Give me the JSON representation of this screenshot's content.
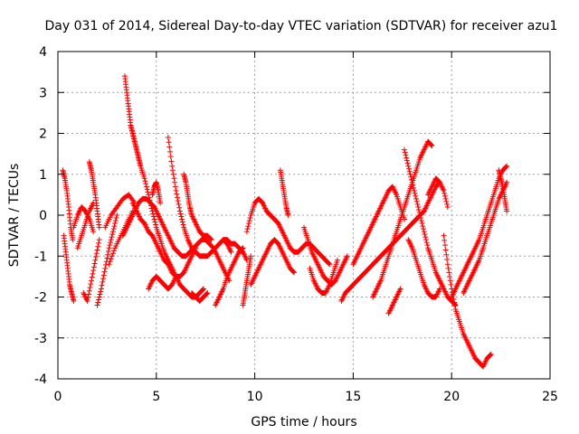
{
  "chart_data": {
    "type": "scatter",
    "title": "Day 031 of 2014, Sidereal Day-to-day VTEC variation (SDTVAR) for receiver azu1",
    "xlabel": "GPS time / hours",
    "ylabel": "SDTVAR / TECUs",
    "xlim": [
      0,
      25
    ],
    "ylim": [
      -4,
      4
    ],
    "xticks": [
      0,
      5,
      10,
      15,
      20,
      25
    ],
    "yticks": [
      -4,
      -3,
      -2,
      -1,
      0,
      1,
      2,
      3,
      4
    ],
    "grid": true,
    "marker": "+",
    "series": [
      {
        "name": "SDTVAR",
        "color": "#ff0000",
        "tracks": [
          {
            "x": [
              0.25,
              0.35,
              0.45,
              0.55,
              0.65,
              0.75
            ],
            "y": [
              1.1,
              0.9,
              0.6,
              0.2,
              -0.3,
              -0.6
            ]
          },
          {
            "x": [
              0.3,
              0.4,
              0.5,
              0.6,
              0.7,
              0.8
            ],
            "y": [
              -0.5,
              -0.9,
              -1.3,
              -1.7,
              -1.9,
              -2.1
            ]
          },
          {
            "x": [
              0.8,
              1.0,
              1.2,
              1.4,
              1.6,
              1.8
            ],
            "y": [
              -0.3,
              0.0,
              0.2,
              0.1,
              -0.1,
              -0.4
            ]
          },
          {
            "x": [
              1.0,
              1.2,
              1.4,
              1.6,
              1.8
            ],
            "y": [
              -0.8,
              -0.5,
              -0.2,
              0.1,
              0.3
            ]
          },
          {
            "x": [
              1.3,
              1.5,
              1.7,
              1.9,
              2.1
            ],
            "y": [
              -1.9,
              -2.1,
              -1.6,
              -1.1,
              -0.6
            ]
          },
          {
            "x": [
              1.6,
              1.7,
              1.8,
              1.9,
              2.0,
              2.1
            ],
            "y": [
              1.3,
              1.1,
              0.8,
              0.5,
              0.1,
              -0.3
            ]
          },
          {
            "x": [
              2.0,
              2.2,
              2.4,
              2.6,
              2.8,
              3.0
            ],
            "y": [
              -2.2,
              -1.8,
              -1.3,
              -0.8,
              -0.4,
              0.0
            ]
          },
          {
            "x": [
              2.4,
              2.7,
              3.0,
              3.3,
              3.6,
              3.9
            ],
            "y": [
              -0.3,
              0.0,
              0.2,
              0.4,
              0.5,
              0.3
            ]
          },
          {
            "x": [
              2.6,
              2.9,
              3.2,
              3.5,
              3.8
            ],
            "y": [
              -1.2,
              -0.8,
              -0.5,
              -0.2,
              0.1
            ]
          },
          {
            "x": [
              3.4,
              3.5,
              3.6,
              3.7,
              3.8,
              3.9,
              4.0,
              4.1,
              4.2,
              4.4,
              4.6,
              4.8,
              5.0,
              5.2,
              5.4,
              5.6,
              5.8,
              6.0,
              6.2,
              6.4,
              6.6,
              6.8,
              7.0,
              7.2,
              7.4
            ],
            "y": [
              3.4,
              3.0,
              2.6,
              2.2,
              2.0,
              1.8,
              1.6,
              1.4,
              1.2,
              0.9,
              0.5,
              0.1,
              -0.3,
              -0.6,
              -0.9,
              -1.1,
              -1.3,
              -1.5,
              -1.7,
              -1.8,
              -1.9,
              -2.0,
              -2.0,
              -1.9,
              -1.8
            ]
          },
          {
            "x": [
              3.3,
              3.5,
              3.7,
              3.9,
              4.1,
              4.3,
              4.5,
              4.7,
              4.9,
              5.1,
              5.3,
              5.5,
              5.7,
              5.9,
              6.1,
              6.3,
              6.5,
              6.7,
              6.9,
              7.1,
              7.3,
              7.5,
              7.7,
              7.9,
              8.1,
              8.3,
              8.5,
              8.7
            ],
            "y": [
              -0.5,
              -0.3,
              -0.1,
              0.1,
              0.3,
              0.4,
              0.4,
              0.3,
              0.2,
              0.0,
              -0.2,
              -0.4,
              -0.6,
              -0.8,
              -0.9,
              -1.0,
              -1.0,
              -0.9,
              -0.8,
              -0.7,
              -0.6,
              -0.6,
              -0.7,
              -0.8,
              -1.0,
              -1.2,
              -1.4,
              -1.6
            ]
          },
          {
            "x": [
              3.8,
              4.0,
              4.2,
              4.4,
              4.6,
              4.8,
              5.0,
              5.2,
              5.4,
              5.6,
              5.8,
              6.0,
              6.2,
              6.4,
              6.6,
              6.8,
              7.0
            ],
            "y": [
              0.3,
              0.1,
              -0.1,
              -0.2,
              -0.4,
              -0.5,
              -0.7,
              -0.9,
              -1.1,
              -1.2,
              -1.4,
              -1.5,
              -1.5,
              -1.4,
              -1.2,
              -1.0,
              -0.8
            ]
          },
          {
            "x": [
              4.8,
              4.9,
              5.0,
              5.1,
              5.2
            ],
            "y": [
              0.5,
              0.7,
              0.8,
              0.6,
              0.3
            ]
          },
          {
            "x": [
              4.6,
              4.8,
              5.0,
              5.2,
              5.4,
              5.6,
              5.8,
              6.0
            ],
            "y": [
              -1.8,
              -1.6,
              -1.5,
              -1.6,
              -1.7,
              -1.8,
              -1.7,
              -1.5
            ]
          },
          {
            "x": [
              5.6,
              5.8,
              6.0,
              6.2,
              6.4,
              6.6,
              6.8,
              7.0,
              7.2,
              7.4,
              7.6,
              7.8,
              8.0,
              8.2,
              8.4,
              8.6,
              8.8
            ],
            "y": [
              1.9,
              1.2,
              0.6,
              0.1,
              -0.3,
              -0.6,
              -0.8,
              -0.9,
              -1.0,
              -1.0,
              -1.0,
              -0.9,
              -0.8,
              -0.7,
              -0.6,
              -0.7,
              -0.9
            ]
          },
          {
            "x": [
              6.4,
              6.5,
              6.6,
              6.7,
              6.8,
              7.0,
              7.2,
              7.4,
              7.6,
              7.8
            ],
            "y": [
              1.0,
              0.8,
              0.5,
              0.2,
              0.0,
              -0.2,
              -0.4,
              -0.5,
              -0.5,
              -0.6
            ]
          },
          {
            "x": [
              6.8,
              7.0,
              7.2,
              7.4,
              7.6
            ],
            "y": [
              -1.9,
              -2.0,
              -2.1,
              -2.0,
              -1.9
            ]
          },
          {
            "x": [
              8.0,
              8.2,
              8.4,
              8.6,
              8.8,
              9.0,
              9.2,
              9.4
            ],
            "y": [
              -2.2,
              -2.0,
              -1.8,
              -1.5,
              -1.3,
              -1.1,
              -0.9,
              -0.8
            ]
          },
          {
            "x": [
              8.4,
              8.6,
              8.8,
              9.0,
              9.2,
              9.4,
              9.6
            ],
            "y": [
              -0.6,
              -0.6,
              -0.7,
              -0.7,
              -0.8,
              -0.9,
              -1.1
            ]
          },
          {
            "x": [
              9.4,
              9.5,
              9.6,
              9.7,
              9.8
            ],
            "y": [
              -2.2,
              -1.9,
              -1.6,
              -1.3,
              -1.0
            ]
          },
          {
            "x": [
              9.6,
              9.8,
              10.0,
              10.2,
              10.4,
              10.6,
              10.8,
              11.0,
              11.2,
              11.4,
              11.6,
              11.8,
              12.0,
              12.2,
              12.4,
              12.6,
              12.8,
              13.0,
              13.2,
              13.4,
              13.6,
              13.8
            ],
            "y": [
              -0.4,
              0.0,
              0.3,
              0.4,
              0.3,
              0.1,
              0.0,
              -0.1,
              -0.2,
              -0.4,
              -0.6,
              -0.8,
              -0.9,
              -0.9,
              -0.8,
              -0.7,
              -0.7,
              -0.8,
              -0.9,
              -1.0,
              -1.1,
              -1.2
            ]
          },
          {
            "x": [
              9.8,
              10.0,
              10.2,
              10.4,
              10.6,
              10.8,
              11.0,
              11.2,
              11.4,
              11.6,
              11.8,
              12.0
            ],
            "y": [
              -1.7,
              -1.5,
              -1.3,
              -1.1,
              -0.9,
              -0.7,
              -0.6,
              -0.7,
              -0.9,
              -1.1,
              -1.3,
              -1.4
            ]
          },
          {
            "x": [
              11.3,
              11.4,
              11.5,
              11.6,
              11.7
            ],
            "y": [
              1.1,
              0.8,
              0.5,
              0.2,
              0.0
            ]
          },
          {
            "x": [
              12.5,
              12.7,
              12.9,
              13.1,
              13.3,
              13.5,
              13.7,
              13.9,
              14.1,
              14.3,
              14.5,
              14.7
            ],
            "y": [
              -0.3,
              -0.6,
              -0.9,
              -1.1,
              -1.3,
              -1.5,
              -1.6,
              -1.7,
              -1.6,
              -1.4,
              -1.2,
              -1.0
            ]
          },
          {
            "x": [
              12.8,
              13.0,
              13.2,
              13.4,
              13.6,
              13.8,
              14.0,
              14.2
            ],
            "y": [
              -1.3,
              -1.6,
              -1.8,
              -1.9,
              -1.9,
              -1.7,
              -1.4,
              -1.1
            ]
          },
          {
            "x": [
              14.4,
              14.6,
              14.8,
              15.0,
              15.2,
              15.4,
              15.6,
              15.8,
              16.0,
              16.2,
              16.4,
              16.6,
              16.8,
              17.0,
              17.2,
              17.4,
              17.6,
              17.8,
              18.0,
              18.2,
              18.4,
              18.6,
              18.8,
              19.0,
              19.2,
              19.4
            ],
            "y": [
              -2.1,
              -1.9,
              -1.8,
              -1.7,
              -1.6,
              -1.5,
              -1.4,
              -1.3,
              -1.2,
              -1.1,
              -1.0,
              -0.9,
              -0.8,
              -0.7,
              -0.6,
              -0.5,
              -0.4,
              -0.3,
              -0.2,
              -0.1,
              0.0,
              0.1,
              0.3,
              0.5,
              0.7,
              0.8
            ]
          },
          {
            "x": [
              15.0,
              15.2,
              15.4,
              15.6,
              15.8,
              16.0,
              16.2,
              16.4,
              16.6,
              16.8,
              17.0,
              17.2,
              17.4,
              17.6
            ],
            "y": [
              -1.2,
              -1.0,
              -0.8,
              -0.6,
              -0.4,
              -0.2,
              0.0,
              0.2,
              0.4,
              0.6,
              0.7,
              0.5,
              0.2,
              -0.1
            ]
          },
          {
            "x": [
              16.0,
              16.2,
              16.4,
              16.6,
              16.8,
              17.0,
              17.2,
              17.4,
              17.6,
              17.8,
              18.0,
              18.2,
              18.4,
              18.6,
              18.8,
              19.0
            ],
            "y": [
              -2.0,
              -1.8,
              -1.6,
              -1.3,
              -1.0,
              -0.7,
              -0.4,
              -0.1,
              0.2,
              0.5,
              0.8,
              1.1,
              1.4,
              1.6,
              1.8,
              1.7
            ]
          },
          {
            "x": [
              16.8,
              17.0,
              17.2,
              17.4
            ],
            "y": [
              -2.4,
              -2.2,
              -2.0,
              -1.8
            ]
          },
          {
            "x": [
              17.6,
              17.8,
              18.0,
              18.2,
              18.4,
              18.6,
              18.8,
              19.0,
              19.2,
              19.4,
              19.6,
              19.8,
              20.0,
              20.2
            ],
            "y": [
              1.6,
              1.2,
              0.8,
              0.4,
              0.0,
              -0.4,
              -0.8,
              -1.1,
              -1.4,
              -1.6,
              -1.8,
              -2.0,
              -2.1,
              -2.2
            ]
          },
          {
            "x": [
              17.8,
              18.0,
              18.2,
              18.4,
              18.6,
              18.8,
              19.0,
              19.2,
              19.4
            ],
            "y": [
              -0.6,
              -0.8,
              -1.1,
              -1.4,
              -1.7,
              -1.9,
              -2.0,
              -2.0,
              -1.8
            ]
          },
          {
            "x": [
              18.8,
              19.0,
              19.2,
              19.4,
              19.6,
              19.8
            ],
            "y": [
              0.5,
              0.7,
              0.9,
              0.8,
              0.6,
              0.2
            ]
          },
          {
            "x": [
              19.6,
              19.8,
              20.0,
              20.2,
              20.4,
              20.6,
              20.8,
              21.0,
              21.2,
              21.4,
              21.6,
              21.8,
              22.0
            ],
            "y": [
              -0.5,
              -1.2,
              -1.8,
              -2.3,
              -2.6,
              -2.9,
              -3.1,
              -3.3,
              -3.5,
              -3.6,
              -3.7,
              -3.5,
              -3.4
            ]
          },
          {
            "x": [
              20.0,
              20.2,
              20.4,
              20.6,
              20.8,
              21.0,
              21.2,
              21.4,
              21.6,
              21.8,
              22.0,
              22.2,
              22.4,
              22.6,
              22.8
            ],
            "y": [
              -2.0,
              -1.8,
              -1.6,
              -1.4,
              -1.2,
              -1.0,
              -0.8,
              -0.6,
              -0.3,
              0.0,
              0.3,
              0.6,
              0.9,
              1.1,
              1.2
            ]
          },
          {
            "x": [
              20.6,
              20.8,
              21.0,
              21.2,
              21.4,
              21.6,
              21.8,
              22.0,
              22.2,
              22.4,
              22.6,
              22.8
            ],
            "y": [
              -1.9,
              -1.7,
              -1.5,
              -1.3,
              -1.1,
              -0.8,
              -0.5,
              -0.2,
              0.1,
              0.4,
              0.6,
              0.8
            ]
          },
          {
            "x": [
              22.4,
              22.5,
              22.6,
              22.7,
              22.8
            ],
            "y": [
              1.1,
              0.9,
              0.7,
              0.4,
              0.1
            ]
          }
        ]
      }
    ]
  }
}
